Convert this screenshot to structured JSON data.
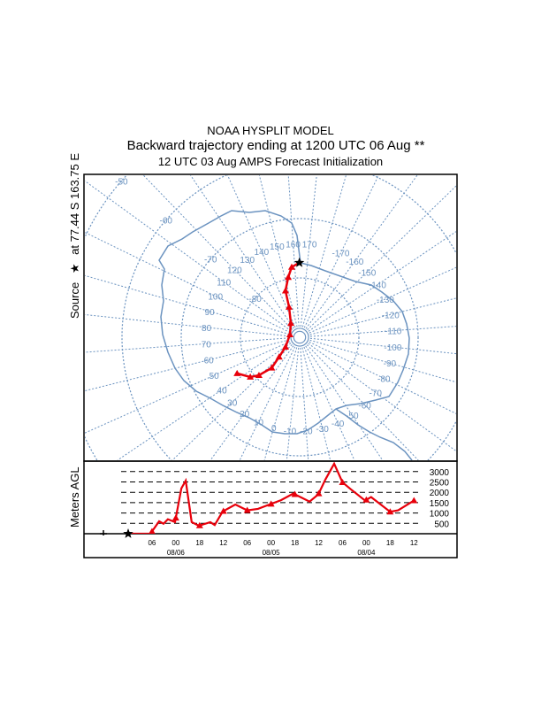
{
  "header": {
    "line1": "NOAA HYSPLIT MODEL",
    "line2": "Backward trajectory ending at 1200 UTC 06 Aug **",
    "line3": "12 UTC 03 Aug    AMPS  Forecast Initialization"
  },
  "side_label": {
    "prefix": "Source",
    "star": "★",
    "suffix": "at   77.44 S  163.75 E"
  },
  "colors": {
    "trajectory": "#e8000b",
    "grid": "#6b93c0",
    "frame": "#000000"
  },
  "chart_data": [
    {
      "type": "trajectory-map",
      "projection": "south-polar-stereographic",
      "source": {
        "lat": -77.44,
        "lon": 163.75
      },
      "points": [
        {
          "lat": -77.44,
          "lon": 163.75
        },
        {
          "lat": -78.1,
          "lon": 157.5
        },
        {
          "lat": -79.7,
          "lon": 153.2
        },
        {
          "lat": -81.8,
          "lon": 147.0
        },
        {
          "lat": -84.6,
          "lon": 144.6
        },
        {
          "lat": -87.2,
          "lon": 132.0
        },
        {
          "lat": -88.3,
          "lon": 89.0
        },
        {
          "lat": -87.1,
          "lon": 39.5
        },
        {
          "lat": -85.2,
          "lon": 30.3
        },
        {
          "lat": -83.0,
          "lon": 26.4
        },
        {
          "lat": -80.6,
          "lon": 31.0
        },
        {
          "lat": -79.3,
          "lon": 35.2
        },
        {
          "lat": -77.8,
          "lon": 44.0
        }
      ],
      "lon_labels": [
        "140",
        "150",
        "160",
        "170",
        "-170",
        "-160",
        "-150",
        "-140",
        "-130",
        "-120",
        "-110",
        "-100",
        "-90",
        "-80",
        "-70",
        "-60",
        "-50",
        "-40",
        "-30",
        "-20",
        "-10",
        "0",
        "10",
        "20",
        "30",
        "40",
        "50",
        "60",
        "70",
        "80",
        "90",
        "100",
        "110",
        "120",
        "130"
      ],
      "lat_labels": [
        "-80",
        "-70",
        "-60",
        "-50"
      ]
    },
    {
      "type": "line",
      "ylabel": "Meters AGL",
      "ylim": [
        0,
        3500
      ],
      "yticks": [
        "500",
        "1000",
        "1500",
        "2000",
        "2500",
        "3000"
      ],
      "hours_back": [
        0,
        5.6,
        7.8,
        8.9,
        10,
        11.8,
        13.4,
        14.5,
        16,
        17.8,
        20.7,
        21.8,
        23.8,
        27,
        30,
        32.7,
        35.6,
        38.5,
        41.6,
        45.7,
        47.9,
        49.7,
        51.9,
        54,
        56,
        59.7,
        61.2,
        66,
        68,
        72
      ],
      "height_m": [
        0,
        0,
        600,
        480,
        700,
        560,
        2190,
        2560,
        560,
        385,
        560,
        420,
        1070,
        1410,
        1130,
        1200,
        1410,
        1620,
        1940,
        1550,
        1900,
        2620,
        3380,
        2480,
        2160,
        1600,
        1770,
        1060,
        1130,
        1600
      ],
      "marker_hours": [
        6,
        12,
        18,
        24,
        30,
        36,
        42,
        48,
        54,
        60,
        66,
        72
      ],
      "xtick_hours": [
        6,
        12,
        18,
        24,
        30,
        36,
        42,
        48,
        54,
        60,
        66,
        72
      ],
      "xtick_labels": [
        "06",
        "00",
        "18",
        "12",
        "06",
        "00",
        "18",
        "12",
        "06",
        "00",
        "18",
        "12"
      ],
      "date_labels": [
        {
          "hour": 12,
          "label": "08/06"
        },
        {
          "hour": 36,
          "label": "08/05"
        },
        {
          "hour": 60,
          "label": "08/04"
        }
      ]
    }
  ]
}
